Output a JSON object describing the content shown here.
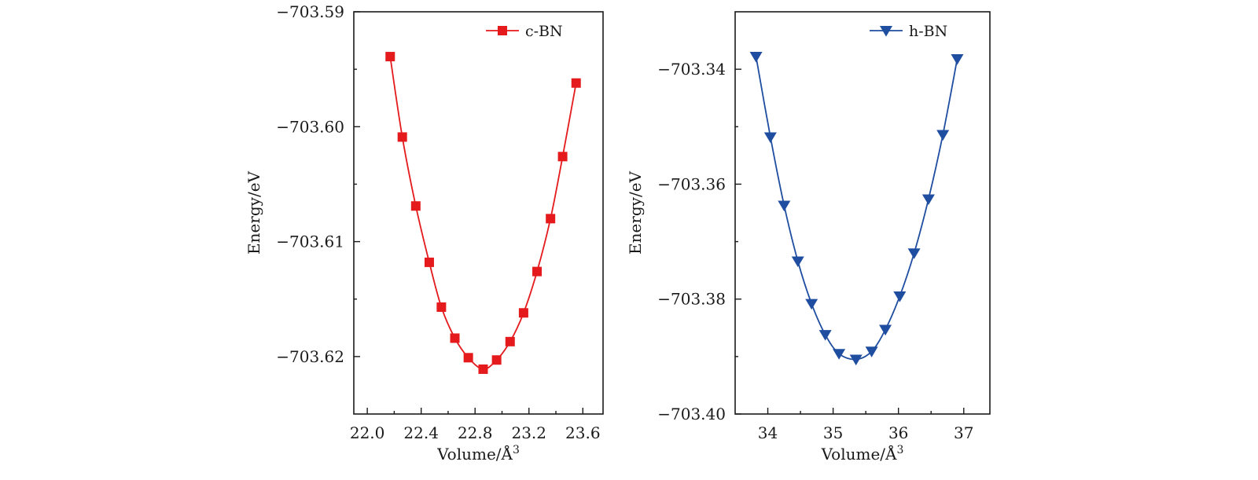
{
  "chart_data": [
    {
      "type": "line",
      "xlabel": "Volume/Å",
      "xlabel_sup": "3",
      "ylabel": "Energy/eV",
      "xlim": [
        21.9,
        23.75
      ],
      "ylim": [
        -703.625,
        -703.59
      ],
      "xticks": [
        22.0,
        22.4,
        22.8,
        23.2,
        23.6
      ],
      "xtick_labels": [
        "22.0",
        "22.4",
        "22.8",
        "23.2",
        "23.6"
      ],
      "yticks": [
        -703.59,
        -703.6,
        -703.61,
        -703.62
      ],
      "ytick_labels": [
        "−703.59",
        "−703.60",
        "−703.61",
        "−703.62"
      ],
      "legend_position": "top-right",
      "grid": false,
      "series": [
        {
          "name": "c-BN",
          "color": "#e41a1c",
          "marker": "square",
          "x": [
            22.17,
            22.26,
            22.36,
            22.46,
            22.55,
            22.65,
            22.75,
            22.86,
            22.96,
            23.06,
            23.16,
            23.26,
            23.36,
            23.45,
            23.55
          ],
          "y": [
            -703.5939,
            -703.6009,
            -703.6069,
            -703.6118,
            -703.6157,
            -703.6184,
            -703.6201,
            -703.6211,
            -703.6203,
            -703.6187,
            -703.6162,
            -703.6126,
            -703.608,
            -703.6026,
            -703.5962
          ]
        }
      ]
    },
    {
      "type": "line",
      "xlabel": "Volume/Å",
      "xlabel_sup": "3",
      "ylabel": "Energy/eV",
      "xlim": [
        33.5,
        37.4
      ],
      "ylim": [
        -703.4,
        -703.33
      ],
      "xticks": [
        34,
        35,
        36,
        37
      ],
      "xtick_labels": [
        "34",
        "35",
        "36",
        "37"
      ],
      "yticks": [
        -703.34,
        -703.36,
        -703.38,
        -703.4
      ],
      "ytick_labels": [
        "−703.34",
        "−703.36",
        "−703.38",
        "−703.40"
      ],
      "legend_position": "top-right",
      "grid": false,
      "series": [
        {
          "name": "h-BN",
          "color": "#1f4ea1",
          "marker": "triangle-down",
          "x": [
            33.82,
            34.04,
            34.25,
            34.46,
            34.67,
            34.88,
            35.09,
            35.35,
            35.59,
            35.8,
            36.02,
            36.24,
            36.46,
            36.68,
            36.9
          ],
          "y": [
            -703.3378,
            -703.3518,
            -703.3637,
            -703.3734,
            -703.3808,
            -703.3862,
            -703.3895,
            -703.3905,
            -703.3891,
            -703.3853,
            -703.3795,
            -703.372,
            -703.3626,
            -703.3514,
            -703.3382
          ]
        }
      ]
    }
  ]
}
